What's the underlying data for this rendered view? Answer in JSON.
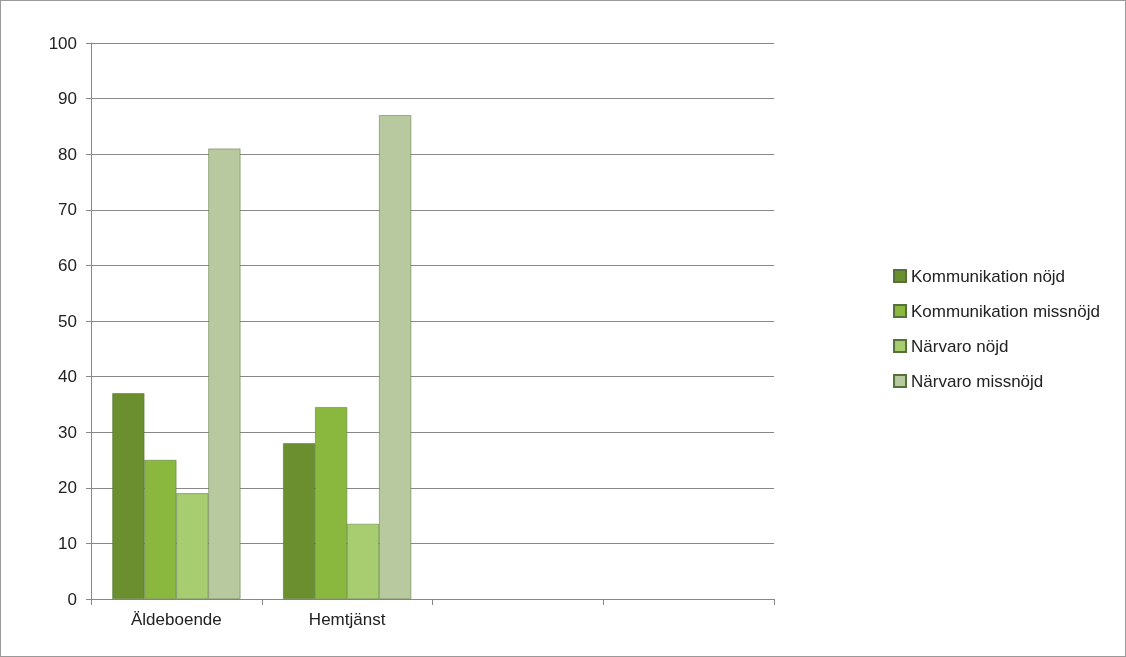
{
  "chart_data": {
    "type": "bar",
    "categories": [
      "Äldeboende",
      "Hemtjänst",
      null,
      null
    ],
    "series": [
      {
        "name": "Kommunikation nöjd",
        "color": "#6b8e2f",
        "values": [
          37,
          28,
          null,
          null
        ]
      },
      {
        "name": "Kommunikation missnöjd",
        "color": "#8ab83e",
        "values": [
          25,
          34.5,
          null,
          null
        ]
      },
      {
        "name": "Närvaro nöjd",
        "color": "#a8cc70",
        "values": [
          19,
          13.5,
          null,
          null
        ]
      },
      {
        "name": "Närvaro missnöjd",
        "color": "#b8c9a0",
        "values": [
          81,
          87,
          null,
          null
        ]
      }
    ],
    "ylim": [
      0,
      100
    ],
    "yticks": [
      0,
      10,
      20,
      30,
      40,
      50,
      60,
      70,
      80,
      90,
      100
    ],
    "grid": "y",
    "legend": "right"
  }
}
